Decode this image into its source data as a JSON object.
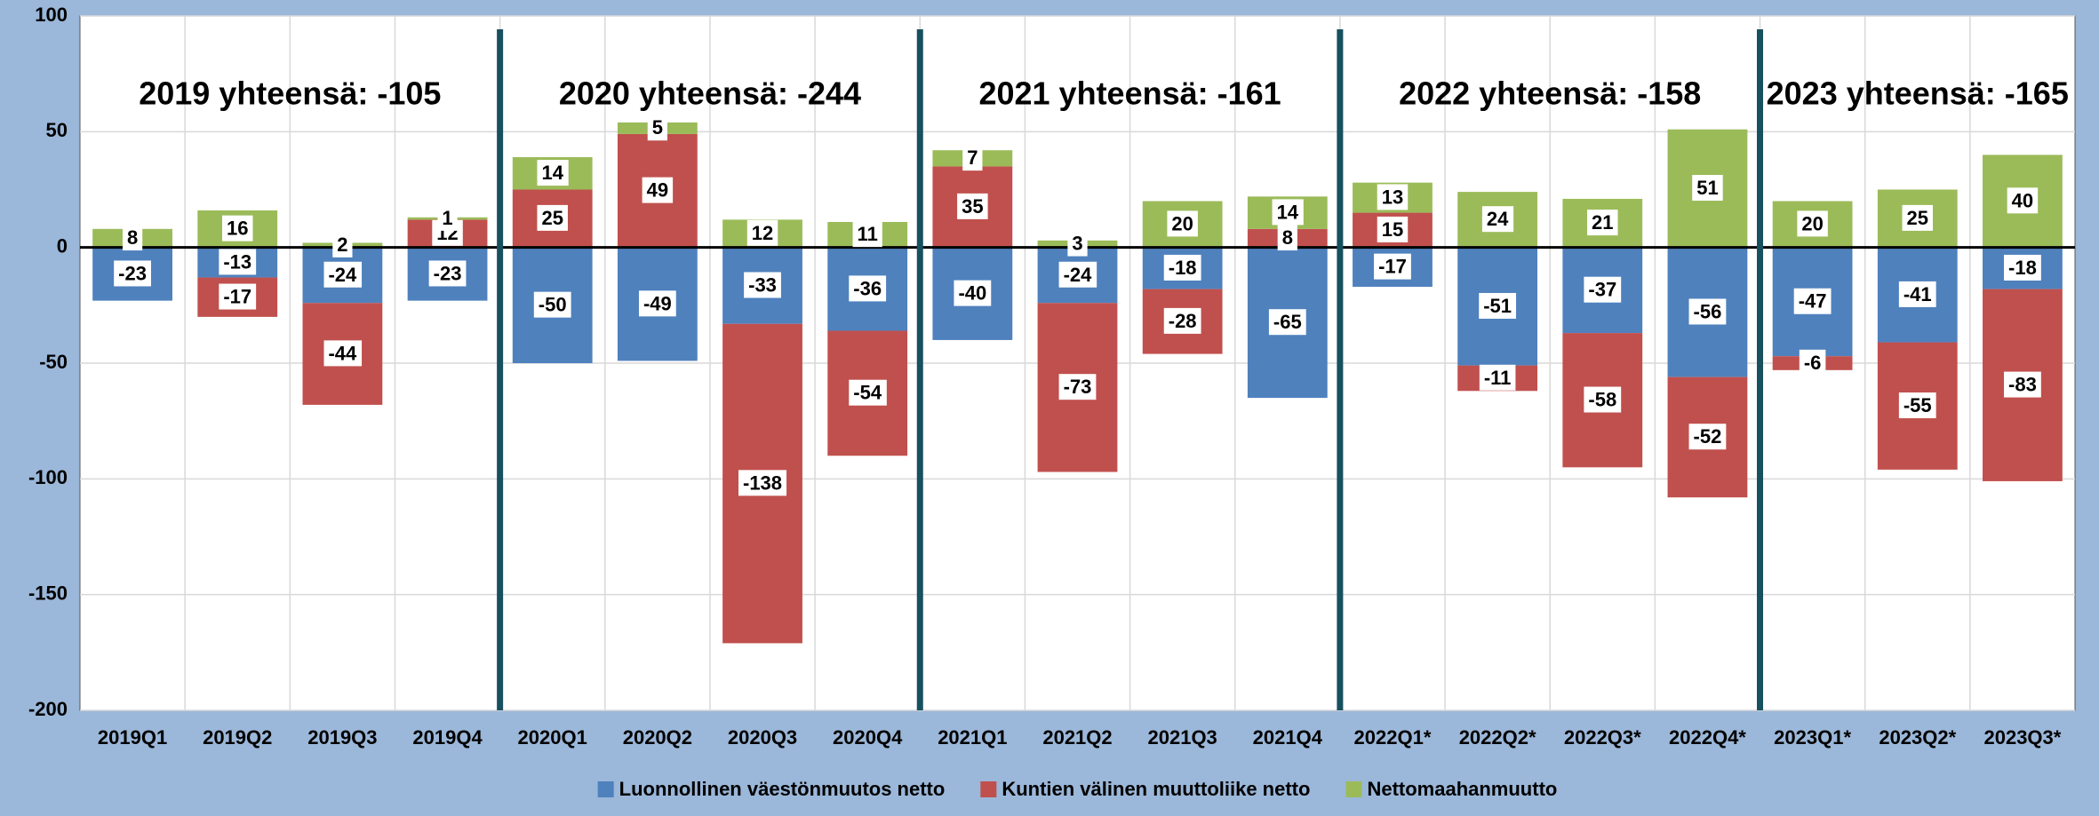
{
  "chart_data": {
    "type": "stacked-bar",
    "categories": [
      "2019Q1",
      "2019Q2",
      "2019Q3",
      "2019Q4",
      "2020Q1",
      "2020Q2",
      "2020Q3",
      "2020Q4",
      "2021Q1",
      "2021Q2",
      "2021Q3",
      "2021Q4",
      "2022Q1*",
      "2022Q2*",
      "2022Q3*",
      "2022Q4*",
      "2023Q1*",
      "2023Q2*",
      "2023Q3*"
    ],
    "series": [
      {
        "name": "Luonnollinen väestönmuutos netto",
        "color": "#4f81bd",
        "values": [
          -23,
          -13,
          -24,
          -23,
          -50,
          -49,
          -33,
          -36,
          -40,
          -24,
          -18,
          -65,
          -17,
          -51,
          -37,
          -56,
          -47,
          -41,
          -18
        ]
      },
      {
        "name": "Kuntien välinen muuttoliike netto",
        "color": "#c0504d",
        "values": [
          0,
          -17,
          -44,
          12,
          25,
          49,
          -138,
          -54,
          35,
          -73,
          -28,
          8,
          15,
          -11,
          -58,
          -52,
          -6,
          -55,
          -83
        ]
      },
      {
        "name": "Nettomaahanmuutto",
        "color": "#9bbb59",
        "values": [
          8,
          16,
          2,
          1,
          14,
          5,
          12,
          11,
          7,
          3,
          20,
          14,
          13,
          24,
          21,
          51,
          20,
          25,
          40
        ]
      }
    ],
    "annotations": [
      "2019 yhteensä: -105",
      "2020 yhteensä: -244",
      "2021 yhteensä: -161",
      "2022 yhteensä: -158",
      "2023 yhteensä: -165"
    ],
    "ylim": [
      -200,
      100
    ],
    "yticks": [
      -200,
      -150,
      -100,
      -50,
      0,
      50,
      100
    ],
    "grid": true,
    "legend": "bottom"
  }
}
